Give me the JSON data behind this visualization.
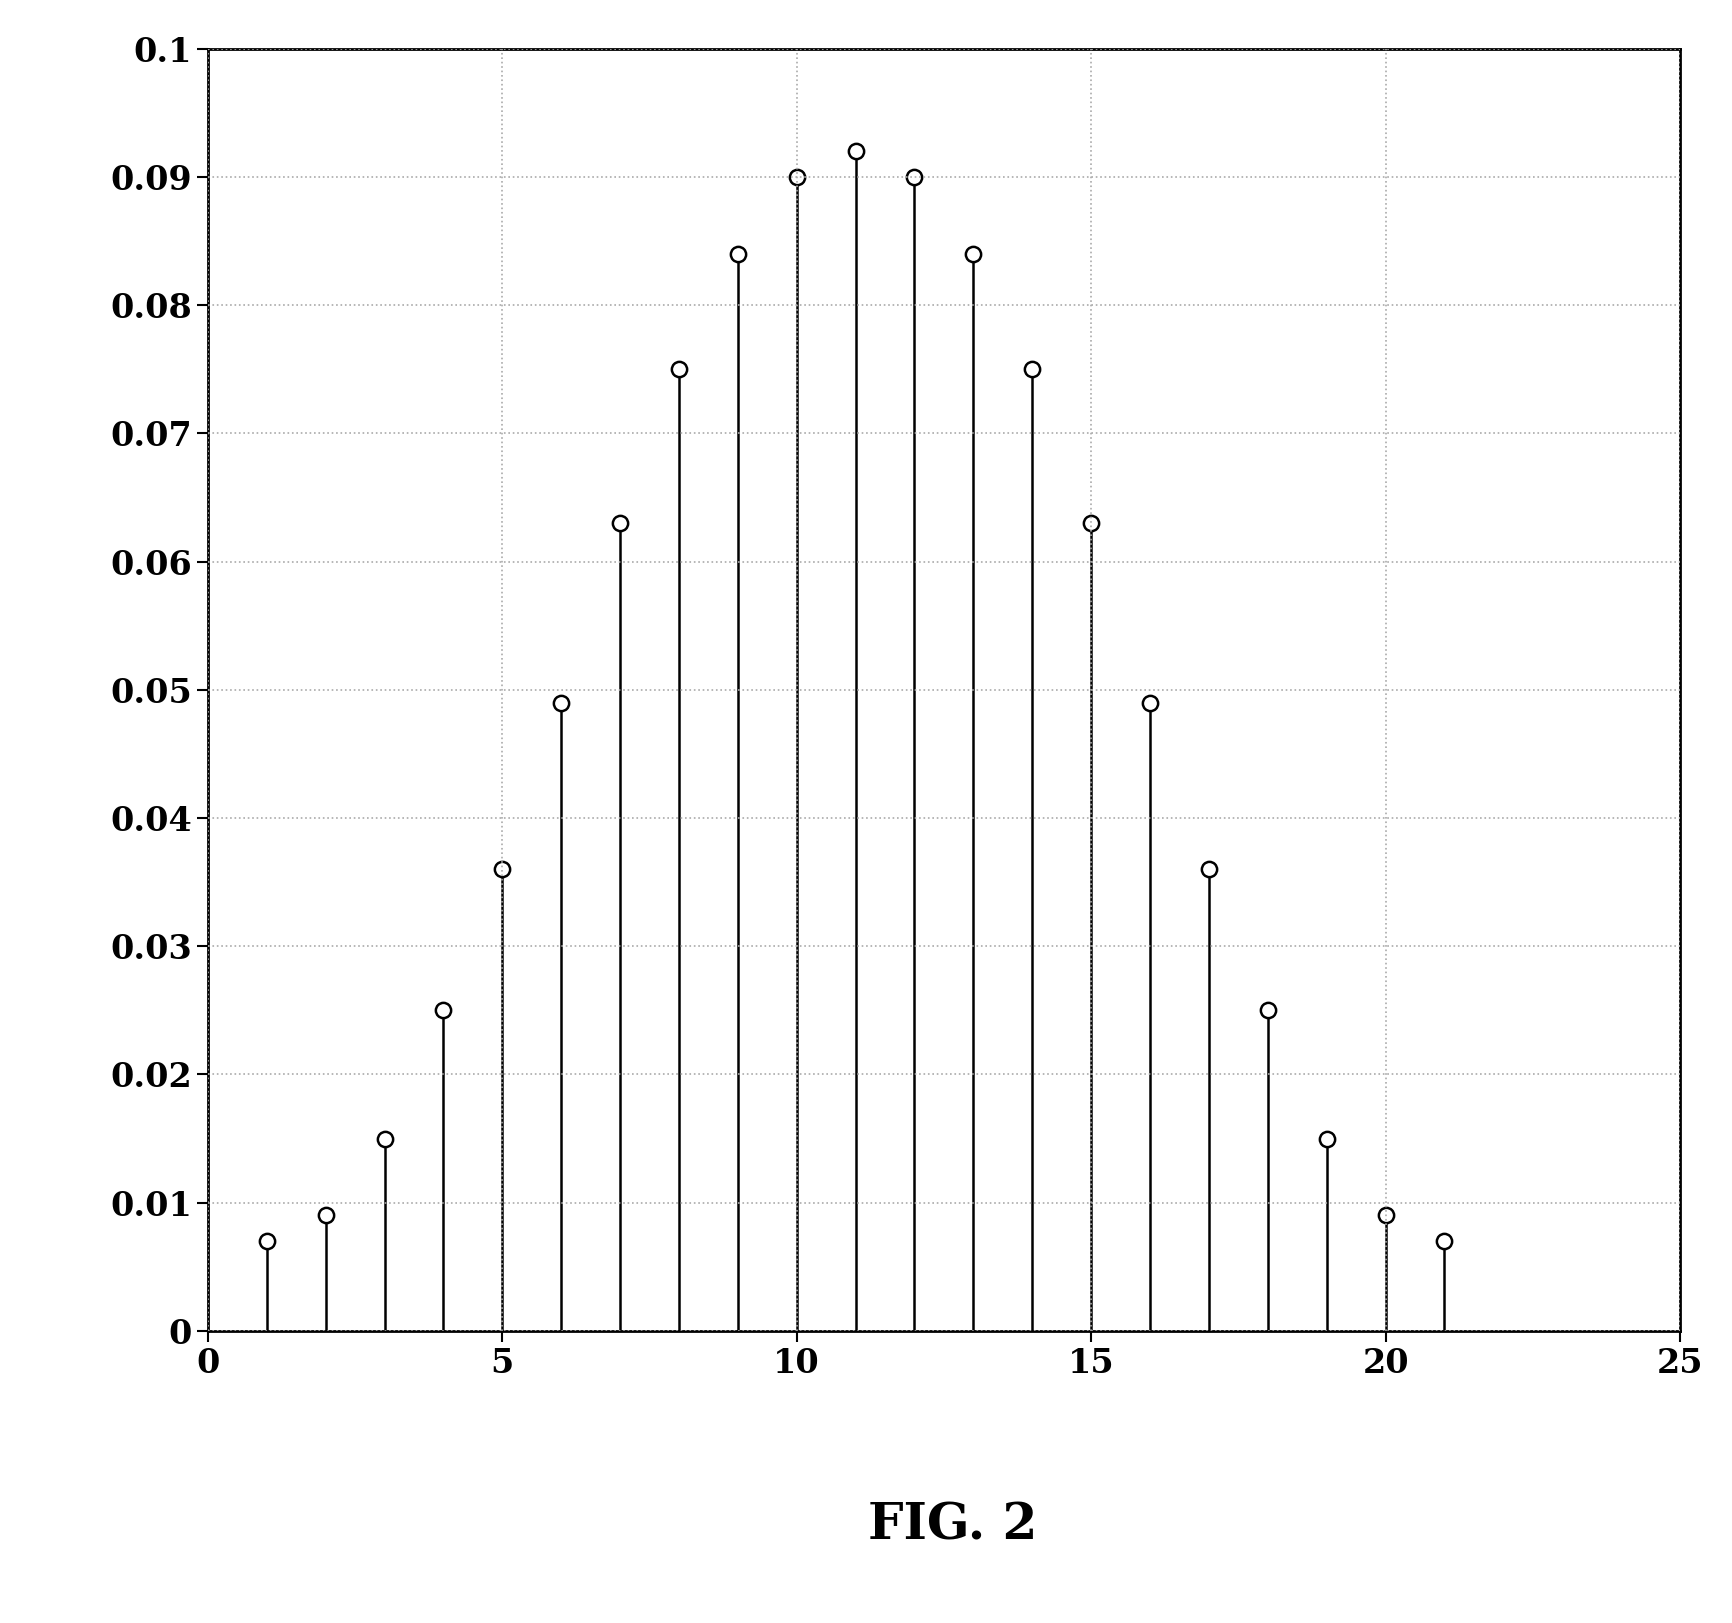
{
  "x": [
    1,
    2,
    3,
    4,
    5,
    6,
    7,
    8,
    9,
    10,
    11,
    12,
    13,
    14,
    15,
    16,
    17,
    18,
    19,
    20,
    21
  ],
  "y": [
    0.007,
    0.009,
    0.015,
    0.025,
    0.036,
    0.049,
    0.063,
    0.075,
    0.084,
    0.09,
    0.092,
    0.09,
    0.084,
    0.075,
    0.063,
    0.049,
    0.036,
    0.025,
    0.015,
    0.009,
    0.007
  ],
  "xlim": [
    0,
    25
  ],
  "ylim": [
    0,
    0.1
  ],
  "xticks": [
    0,
    5,
    10,
    15,
    20,
    25
  ],
  "yticks": [
    0,
    0.01,
    0.02,
    0.03,
    0.04,
    0.05,
    0.06,
    0.07,
    0.08,
    0.09,
    0.1
  ],
  "ytick_labels": [
    "0",
    "0.01",
    "0.02",
    "0.03",
    "0.04",
    "0.05",
    "0.06",
    "0.07",
    "0.08",
    "0.09",
    "0.1"
  ],
  "xtick_labels": [
    "0",
    "5",
    "10",
    "15",
    "20",
    "25"
  ],
  "title": "FIG. 2",
  "title_fontsize": 36,
  "tick_fontsize": 24,
  "background_color": "#ffffff",
  "line_color": "#000000",
  "marker_color": "#ffffff",
  "marker_edge_color": "#000000",
  "grid_color": "#aaaaaa",
  "grid_style": ":"
}
